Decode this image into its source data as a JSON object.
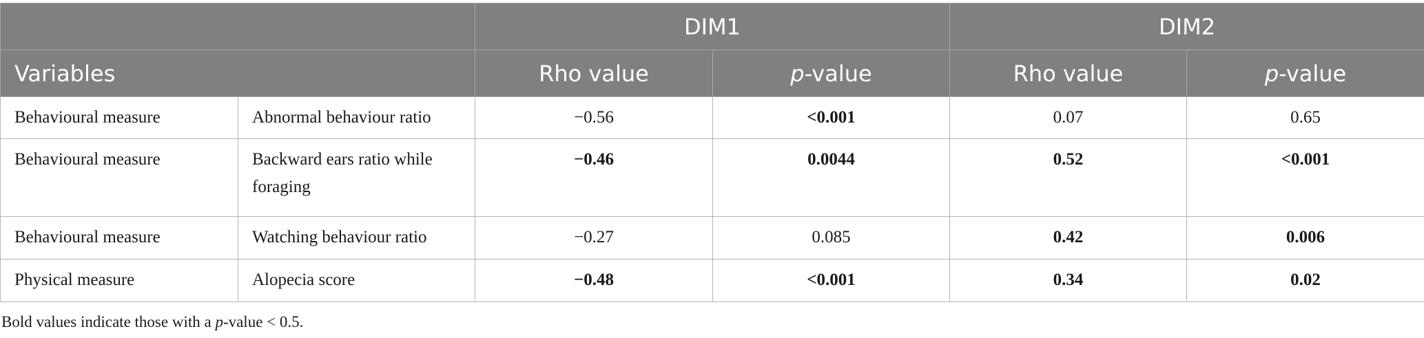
{
  "header": {
    "group_dim1": "DIM1",
    "group_dim2": "DIM2",
    "variables": "Variables",
    "rho_value": "Rho value",
    "p_prefix": "p",
    "p_suffix": "-value"
  },
  "rows": [
    {
      "category": "Behavioural measure",
      "variable": "Abnormal behaviour ratio",
      "dim1_rho": "−0.56",
      "dim1_p": "<0.001",
      "dim2_rho": "0.07",
      "dim2_p": "0.65"
    },
    {
      "category": "Behavioural measure",
      "variable": "Backward ears ratio while foraging",
      "dim1_rho": "−0.46",
      "dim1_p": "0.0044",
      "dim2_rho": "0.52",
      "dim2_p": "<0.001"
    },
    {
      "category": "Behavioural measure",
      "variable": "Watching behaviour ratio",
      "dim1_rho": "−0.27",
      "dim1_p": "0.085",
      "dim2_rho": "0.42",
      "dim2_p": "0.006"
    },
    {
      "category": "Physical measure",
      "variable": "Alopecia score",
      "dim1_rho": "−0.48",
      "dim1_p": "<0.001",
      "dim2_rho": "0.34",
      "dim2_p": "0.02"
    }
  ],
  "footnote": {
    "before": "Bold values indicate those with a ",
    "italic": "p",
    "after": "-value < 0.5."
  }
}
